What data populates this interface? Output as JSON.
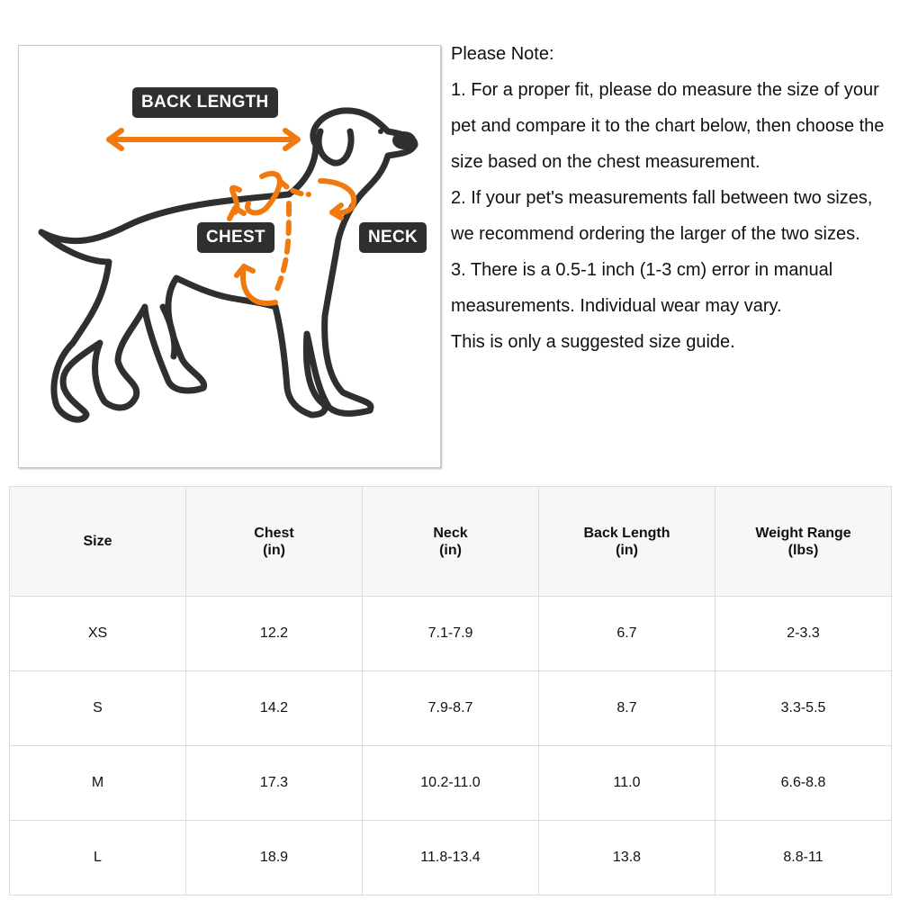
{
  "figure": {
    "labels": {
      "back_length": "BACK LENGTH",
      "chest": "CHEST",
      "neck": "NECK"
    },
    "colors": {
      "arrow": "#f07a10",
      "outline": "#2f2f2f",
      "label_bg": "#2f2f2f"
    }
  },
  "notes": {
    "lines": [
      "Please Note:",
      "1. For a proper fit, please do measure the size of your",
      "pet and compare it to the chart below, then choose the",
      "size based on the chest measurement.",
      "2. If your pet's measurements fall between two sizes,",
      "we recommend ordering the larger of the two sizes.",
      "3. There is a 0.5-1 inch (1-3 cm) error in manual",
      "measurements. Individual wear may vary.",
      "This is only a suggested size guide."
    ]
  },
  "table": {
    "headers": [
      {
        "name": "Size",
        "unit": ""
      },
      {
        "name": "Chest",
        "unit": "(in)"
      },
      {
        "name": "Neck",
        "unit": "(in)"
      },
      {
        "name": "Back Length",
        "unit": "(in)"
      },
      {
        "name": "Weight Range",
        "unit": "(lbs)"
      }
    ],
    "rows": [
      [
        "XS",
        "12.2",
        "7.1-7.9",
        "6.7",
        "2-3.3"
      ],
      [
        "S",
        "14.2",
        "7.9-8.7",
        "8.7",
        "3.3-5.5"
      ],
      [
        "M",
        "17.3",
        "10.2-11.0",
        "11.0",
        "6.6-8.8"
      ],
      [
        "L",
        "18.9",
        "11.8-13.4",
        "13.8",
        "8.8-11"
      ]
    ]
  }
}
